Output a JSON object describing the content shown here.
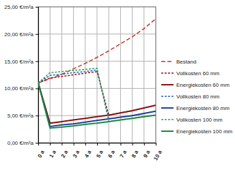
{
  "chart_data": {
    "type": "line",
    "x": [
      0,
      1,
      2,
      3,
      4,
      5,
      6,
      7,
      8,
      9,
      10
    ],
    "xlim": [
      0,
      10
    ],
    "xticks": [
      {
        "value": 0,
        "label": "0 a"
      },
      {
        "value": 1,
        "label": "1 a"
      },
      {
        "value": 2,
        "label": "2 a"
      },
      {
        "value": 3,
        "label": "3 a"
      },
      {
        "value": 4,
        "label": "4 a"
      },
      {
        "value": 5,
        "label": "5 a"
      },
      {
        "value": 6,
        "label": "6 a"
      },
      {
        "value": 7,
        "label": "7 a"
      },
      {
        "value": 8,
        "label": "8 a"
      },
      {
        "value": 9,
        "label": "9 a"
      },
      {
        "value": 10,
        "label": "10 a"
      }
    ],
    "ylim": [
      0,
      25
    ],
    "yticks": [
      {
        "value": 0,
        "label": "0,00 €/m²a"
      },
      {
        "value": 5,
        "label": "5,00 €/m²a"
      },
      {
        "value": 10,
        "label": "10,00 €/m²a"
      },
      {
        "value": 15,
        "label": "15,00 €/m²a"
      },
      {
        "value": 20,
        "label": "20,00 €/m²a"
      },
      {
        "value": 25,
        "label": "25,00 €/m²a"
      }
    ],
    "grid": true,
    "legend": "right",
    "series": [
      {
        "name": "Bestand",
        "color": "#c0392b",
        "line_style": "dashed",
        "values": [
          11,
          11.8,
          12.6,
          13.6,
          14.6,
          15.7,
          16.9,
          18.2,
          19.5,
          21,
          22.8
        ]
      },
      {
        "name": "Vollkosten 60 mm",
        "color": "#8b1010",
        "line_style": "dotted",
        "values": [
          11,
          11.9,
          12.2,
          12.5,
          12.8,
          13.1,
          5.1,
          5.5,
          5.9,
          6.4,
          6.9
        ]
      },
      {
        "name": "Energiekosten 60 mm",
        "color": "#8b1010",
        "line_style": "solid",
        "values": [
          11,
          3.6,
          3.9,
          4.2,
          4.5,
          4.8,
          5.1,
          5.5,
          5.9,
          6.4,
          6.9
        ]
      },
      {
        "name": "Vollkosten 80 mm",
        "color": "#2e5fbf",
        "line_style": "dotted",
        "values": [
          11,
          12.4,
          12.6,
          12.9,
          13.1,
          13.4,
          4.4,
          4.7,
          5.0,
          5.4,
          5.8
        ]
      },
      {
        "name": "Energiekosten 80 mm",
        "color": "#1f3f99",
        "line_style": "solid",
        "values": [
          11,
          3.0,
          3.3,
          3.5,
          3.8,
          4.1,
          4.4,
          4.7,
          5.0,
          5.4,
          5.8
        ]
      },
      {
        "name": "Vollkosten 100 mm",
        "color": "#2ea04a",
        "line_style": "dotted",
        "values": [
          11,
          12.9,
          13.1,
          13.3,
          13.5,
          13.7,
          3.9,
          4.2,
          4.5,
          4.8,
          5.1
        ]
      },
      {
        "name": "Energiekosten 100 mm",
        "color": "#1a8a3a",
        "line_style": "solid",
        "values": [
          11,
          2.7,
          2.9,
          3.1,
          3.4,
          3.6,
          3.9,
          4.2,
          4.5,
          4.8,
          5.1
        ]
      }
    ]
  }
}
